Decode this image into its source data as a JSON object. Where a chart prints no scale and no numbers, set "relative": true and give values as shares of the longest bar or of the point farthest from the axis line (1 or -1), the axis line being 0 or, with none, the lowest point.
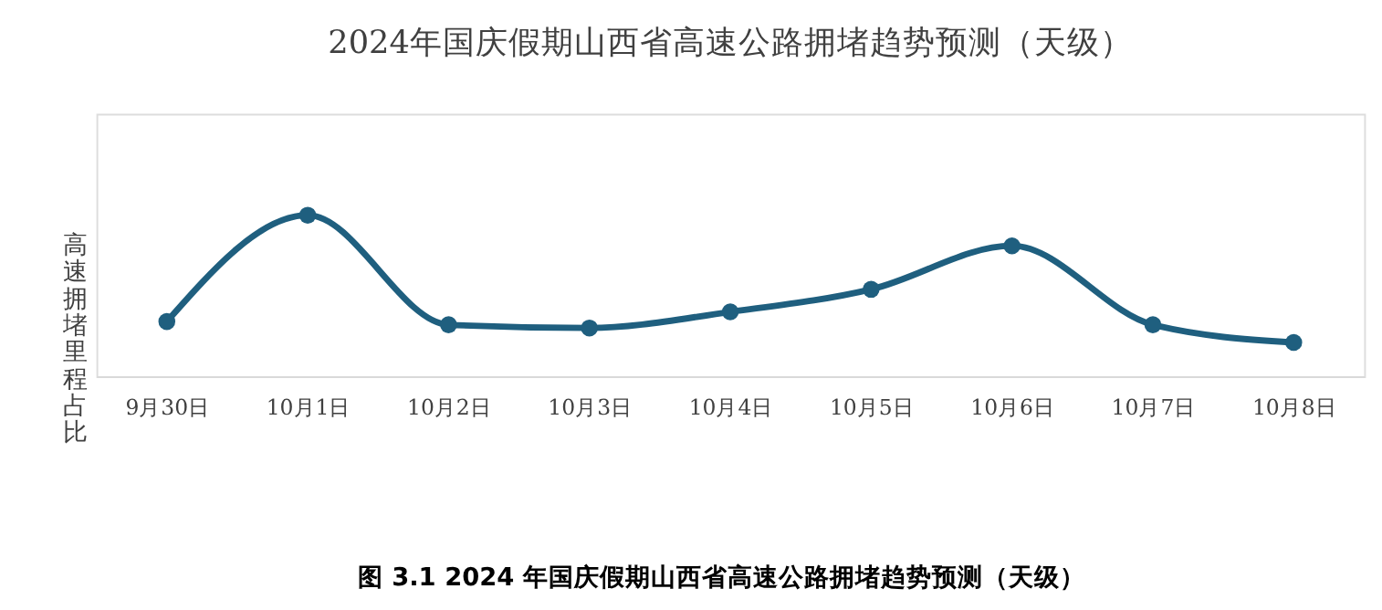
{
  "chart_data": {
    "type": "line",
    "title": "2024年国庆假期山西省高速公路拥堵趋势预测（天级）",
    "ylabel": "高速拥堵里程占比",
    "categories": [
      "9月30日",
      "10月1日",
      "10月2日",
      "10月3日",
      "10月4日",
      "10月5日",
      "10月6日",
      "10月7日",
      "10月8日"
    ],
    "series": [
      {
        "color": "#1f5f7f",
        "values": [
          0.34,
          1,
          0.32,
          0.3,
          0.4,
          0.54,
          0.81,
          0.32,
          0.21
        ]
      }
    ],
    "relative": true,
    "marker": "circle",
    "line_style": "solid",
    "grid": false,
    "annotations": [
      "图 3.1 2024 年国庆假期山西省高速公路拥堵趋势预测（天级）"
    ]
  }
}
